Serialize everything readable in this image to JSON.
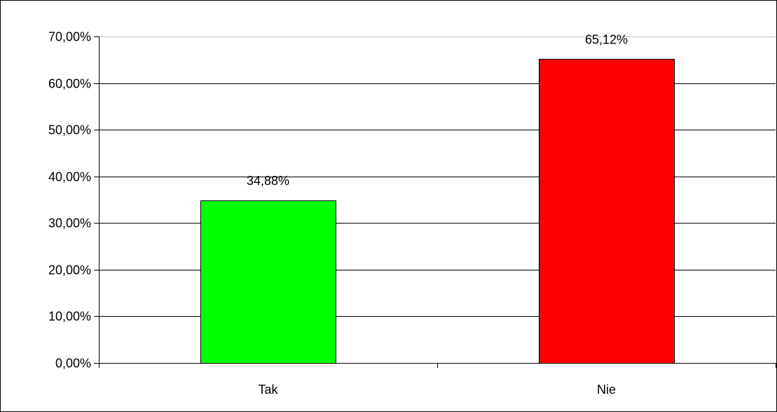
{
  "chart_data": {
    "type": "bar",
    "title": "",
    "xlabel": "",
    "ylabel": "",
    "categories": [
      "Tak",
      "Nie"
    ],
    "values": [
      34.88,
      65.12
    ],
    "value_labels": [
      "34,88%",
      "65,12%"
    ],
    "bar_colors": [
      "#00ff00",
      "#ff0000"
    ],
    "ylim": [
      0,
      70
    ],
    "yticks": [
      0,
      10,
      20,
      30,
      40,
      50,
      60,
      70
    ],
    "ytick_labels": [
      "0,00%",
      "10,00%",
      "20,00%",
      "30,00%",
      "40,00%",
      "50,00%",
      "60,00%",
      "70,00%"
    ],
    "grid": true,
    "legend": "none",
    "colors": {
      "gridline": "#000000",
      "top_gridline": "#c0c0c0",
      "bar_border": "#000000",
      "background": "#ffffff"
    }
  }
}
